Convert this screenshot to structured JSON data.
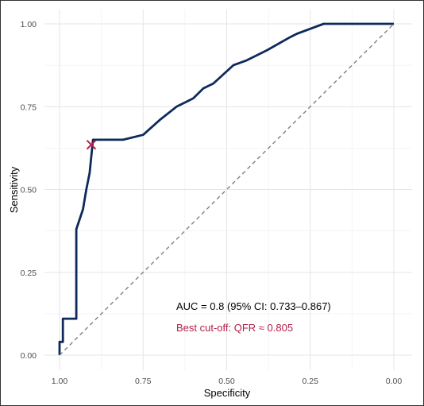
{
  "chart_data": {
    "type": "line",
    "xlabel": "Specificity",
    "ylabel": "Sensitivity",
    "xlim": [
      1.0,
      0.0
    ],
    "ylim": [
      0.0,
      1.0
    ],
    "x_reversed": true,
    "x_ticks": [
      "1.00",
      "0.75",
      "0.50",
      "0.25",
      "0.00"
    ],
    "y_ticks": [
      "0.00",
      "0.25",
      "0.50",
      "0.75",
      "1.00"
    ],
    "x_tick_values": [
      1.0,
      0.75,
      0.5,
      0.25,
      0.0
    ],
    "y_tick_values": [
      0.0,
      0.25,
      0.5,
      0.75,
      1.0
    ],
    "grid": true,
    "series": [
      {
        "type": "step-line",
        "color": "#0d2a5a",
        "points": [
          [
            1.0,
            0.0
          ],
          [
            1.0,
            0.04
          ],
          [
            0.99,
            0.04
          ],
          [
            0.99,
            0.11
          ],
          [
            0.95,
            0.11
          ],
          [
            0.95,
            0.38
          ],
          [
            0.93,
            0.44
          ],
          [
            0.92,
            0.5
          ],
          [
            0.91,
            0.55
          ],
          [
            0.9,
            0.65
          ],
          [
            0.88,
            0.65
          ],
          [
            0.81,
            0.65
          ],
          [
            0.75,
            0.665
          ],
          [
            0.7,
            0.71
          ],
          [
            0.65,
            0.75
          ],
          [
            0.6,
            0.775
          ],
          [
            0.57,
            0.805
          ],
          [
            0.54,
            0.82
          ],
          [
            0.48,
            0.875
          ],
          [
            0.44,
            0.89
          ],
          [
            0.38,
            0.92
          ],
          [
            0.31,
            0.96
          ],
          [
            0.29,
            0.97
          ],
          [
            0.21,
            1.0
          ],
          [
            0.0,
            1.0
          ]
        ]
      },
      {
        "type": "reference-line",
        "color": "#808080",
        "dashed": true,
        "points": [
          [
            1.0,
            0.0
          ],
          [
            0.0,
            1.0
          ]
        ]
      }
    ],
    "markers": [
      {
        "shape": "x",
        "color": "#b3204a",
        "point": [
          0.905,
          0.635
        ]
      }
    ],
    "annotations": [
      {
        "text": "AUC = 0.8 (95% CI: 0.733–0.867)",
        "color": "#000000"
      },
      {
        "text": "Best cut-off: QFR ≈ 0.805",
        "color": "#b3204a"
      }
    ]
  }
}
